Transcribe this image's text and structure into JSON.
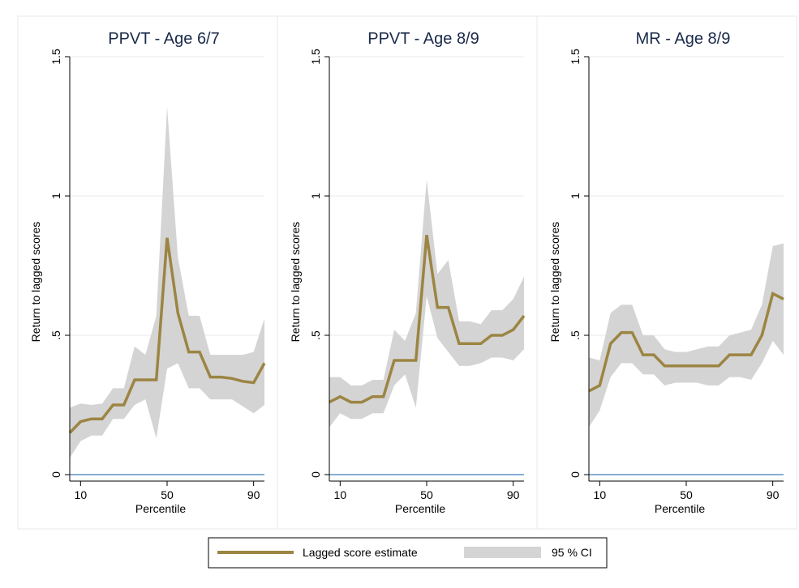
{
  "colors": {
    "estimate_line": "#9c8543",
    "ci_band": "#d4d4d4",
    "zero_line": "#3d7ebc",
    "gridline": "#eaeaea",
    "panel_border": "#e4e8ee",
    "text": "#000000",
    "title_text": "#1a2a4a"
  },
  "legend": {
    "position": "bottom",
    "estimate_label": "Lagged score estimate",
    "ci_label": "95 % CI"
  },
  "chart_data": [
    {
      "type": "line",
      "title": "PPVT - Age 6/7",
      "xlabel": "Percentile",
      "ylabel": "Return to lagged scores",
      "xlim": [
        5,
        95
      ],
      "ylim": [
        0,
        1.5
      ],
      "x_ticks": [
        10,
        50,
        90
      ],
      "x_tick_labels": [
        "10",
        "50",
        "90"
      ],
      "y_ticks": [
        0,
        0.5,
        1,
        1.5
      ],
      "y_tick_labels": [
        "0",
        ".5",
        "1",
        "1.5"
      ],
      "grid": true,
      "series": [
        {
          "name": "Lagged score estimate",
          "x": [
            5,
            10,
            15,
            20,
            25,
            30,
            35,
            40,
            45,
            50,
            55,
            60,
            65,
            70,
            75,
            80,
            85,
            90,
            95
          ],
          "values": [
            0.15,
            0.19,
            0.2,
            0.2,
            0.25,
            0.25,
            0.34,
            0.34,
            0.34,
            0.85,
            0.58,
            0.44,
            0.44,
            0.35,
            0.35,
            0.345,
            0.335,
            0.33,
            0.4
          ],
          "ci_lower": [
            0.06,
            0.12,
            0.14,
            0.14,
            0.2,
            0.2,
            0.25,
            0.27,
            0.13,
            0.38,
            0.4,
            0.31,
            0.31,
            0.27,
            0.27,
            0.27,
            0.245,
            0.22,
            0.25
          ],
          "ci_upper": [
            0.24,
            0.255,
            0.25,
            0.255,
            0.31,
            0.31,
            0.46,
            0.43,
            0.57,
            1.32,
            0.78,
            0.57,
            0.57,
            0.43,
            0.43,
            0.43,
            0.43,
            0.44,
            0.56
          ]
        }
      ]
    },
    {
      "type": "line",
      "title": "PPVT - Age 8/9",
      "xlabel": "Percentile",
      "ylabel": "Return to lagged scores",
      "xlim": [
        5,
        95
      ],
      "ylim": [
        0,
        1.5
      ],
      "x_ticks": [
        10,
        50,
        90
      ],
      "x_tick_labels": [
        "10",
        "50",
        "90"
      ],
      "y_ticks": [
        0,
        0.5,
        1,
        1.5
      ],
      "y_tick_labels": [
        "0",
        ".5",
        "1",
        "1.5"
      ],
      "grid": true,
      "series": [
        {
          "name": "Lagged score estimate",
          "x": [
            5,
            10,
            15,
            20,
            25,
            30,
            35,
            40,
            45,
            50,
            55,
            60,
            65,
            70,
            75,
            80,
            85,
            90,
            95
          ],
          "values": [
            0.26,
            0.28,
            0.26,
            0.26,
            0.28,
            0.28,
            0.41,
            0.41,
            0.41,
            0.86,
            0.6,
            0.6,
            0.47,
            0.47,
            0.47,
            0.5,
            0.5,
            0.52,
            0.57
          ],
          "ci_lower": [
            0.17,
            0.22,
            0.2,
            0.2,
            0.22,
            0.22,
            0.32,
            0.36,
            0.24,
            0.64,
            0.49,
            0.44,
            0.39,
            0.39,
            0.4,
            0.42,
            0.42,
            0.41,
            0.45
          ],
          "ci_upper": [
            0.35,
            0.35,
            0.32,
            0.32,
            0.34,
            0.34,
            0.52,
            0.48,
            0.58,
            1.06,
            0.72,
            0.77,
            0.55,
            0.55,
            0.54,
            0.59,
            0.59,
            0.63,
            0.71
          ]
        }
      ]
    },
    {
      "type": "line",
      "title": "MR - Age 8/9",
      "xlabel": "Percentile",
      "ylabel": "Return to lagged scores",
      "xlim": [
        5,
        95
      ],
      "ylim": [
        0,
        1.5
      ],
      "x_ticks": [
        10,
        50,
        90
      ],
      "x_tick_labels": [
        "10",
        "50",
        "90"
      ],
      "y_ticks": [
        0,
        0.5,
        1,
        1.5
      ],
      "y_tick_labels": [
        "0",
        ".5",
        "1",
        "1.5"
      ],
      "grid": true,
      "series": [
        {
          "name": "Lagged score estimate",
          "x": [
            5,
            10,
            15,
            20,
            25,
            30,
            35,
            40,
            45,
            50,
            55,
            60,
            65,
            70,
            75,
            80,
            85,
            90,
            95
          ],
          "values": [
            0.3,
            0.32,
            0.47,
            0.51,
            0.51,
            0.43,
            0.43,
            0.39,
            0.39,
            0.39,
            0.39,
            0.39,
            0.39,
            0.43,
            0.43,
            0.43,
            0.5,
            0.65,
            0.63
          ],
          "ci_lower": [
            0.17,
            0.23,
            0.35,
            0.4,
            0.4,
            0.36,
            0.36,
            0.32,
            0.33,
            0.33,
            0.33,
            0.32,
            0.32,
            0.35,
            0.35,
            0.34,
            0.4,
            0.48,
            0.43
          ],
          "ci_upper": [
            0.42,
            0.41,
            0.58,
            0.61,
            0.61,
            0.5,
            0.5,
            0.45,
            0.44,
            0.44,
            0.45,
            0.46,
            0.46,
            0.5,
            0.51,
            0.52,
            0.61,
            0.82,
            0.83
          ]
        }
      ]
    }
  ]
}
